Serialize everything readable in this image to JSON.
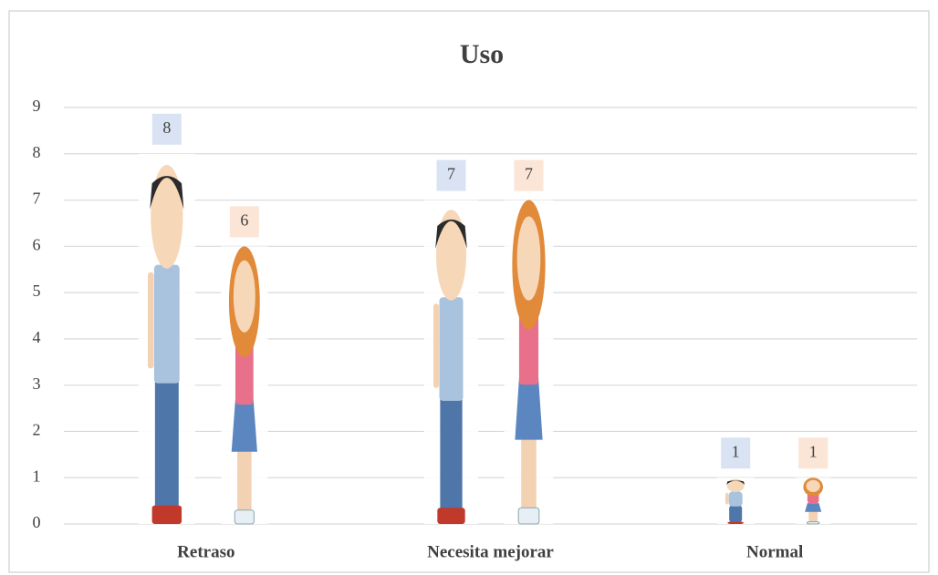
{
  "chart_data": {
    "type": "pictograph",
    "title": "Uso",
    "categories": [
      "Retraso",
      "Necesita mejorar",
      "Normal"
    ],
    "series": [
      {
        "color": "#dae3f3",
        "values": [
          8,
          7,
          1
        ]
      },
      {
        "color": "#fbe5d6",
        "values": [
          6,
          7,
          1
        ]
      }
    ],
    "ylim": [
      0,
      9
    ],
    "yticks": [
      0,
      1,
      2,
      3,
      4,
      5,
      6,
      7,
      8,
      9
    ],
    "grid": true
  }
}
